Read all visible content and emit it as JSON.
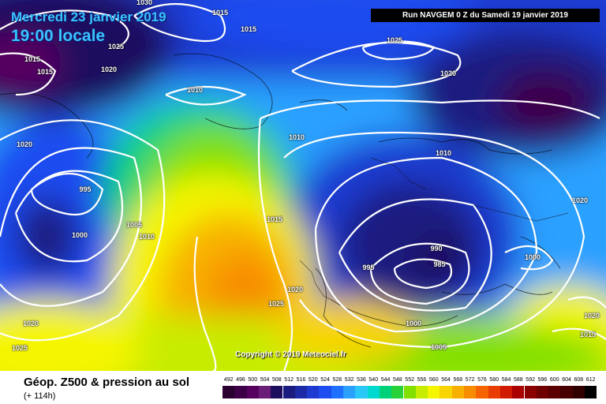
{
  "header": {
    "date": "Mercredi 23 janvier 2019",
    "time": "19:00 locale",
    "run": "Run NAVGEM 0 Z du Samedi 19 janvier 2019"
  },
  "copyright": "Copyright © 2019 Meteociel.fr",
  "footer": {
    "title": "Géop. Z500 & pression au sol",
    "subtitle": "(+ 114h)"
  },
  "isobar_labels": [
    "1030",
    "1015",
    "1015",
    "1025",
    "1015",
    "1015",
    "1020",
    "1010",
    "1025",
    "1020",
    "1020",
    "1010",
    "1010",
    "995",
    "1005",
    "1010",
    "1000",
    "1015",
    "1020",
    "1025",
    "1020",
    "1025",
    "990",
    "985",
    "995",
    "1000",
    "1005",
    "1020",
    "1000",
    "1020",
    "1015"
  ],
  "scale": {
    "labels": [
      "492",
      "496",
      "500",
      "504",
      "508",
      "512",
      "516",
      "520",
      "524",
      "528",
      "532",
      "536",
      "540",
      "544",
      "548",
      "552",
      "556",
      "560",
      "564",
      "568",
      "572",
      "576",
      "580",
      "584",
      "588",
      "592",
      "596",
      "600",
      "604",
      "608",
      "612"
    ],
    "colors": [
      "#2a0030",
      "#3d0048",
      "#560060",
      "#6a1e78",
      "#1e0e5e",
      "#1a1c80",
      "#1d2aa6",
      "#1f3ad0",
      "#1d4cf0",
      "#2070ff",
      "#2aa0ff",
      "#29c8f6",
      "#00d9d0",
      "#00d27a",
      "#28d238",
      "#82e000",
      "#c8ec00",
      "#f5f500",
      "#f8d400",
      "#f8b000",
      "#f88c00",
      "#f56400",
      "#e83c00",
      "#d01a00",
      "#aa0000",
      "#8a0000",
      "#6e0000",
      "#5a0000",
      "#460000",
      "#300000",
      "#000000"
    ]
  }
}
